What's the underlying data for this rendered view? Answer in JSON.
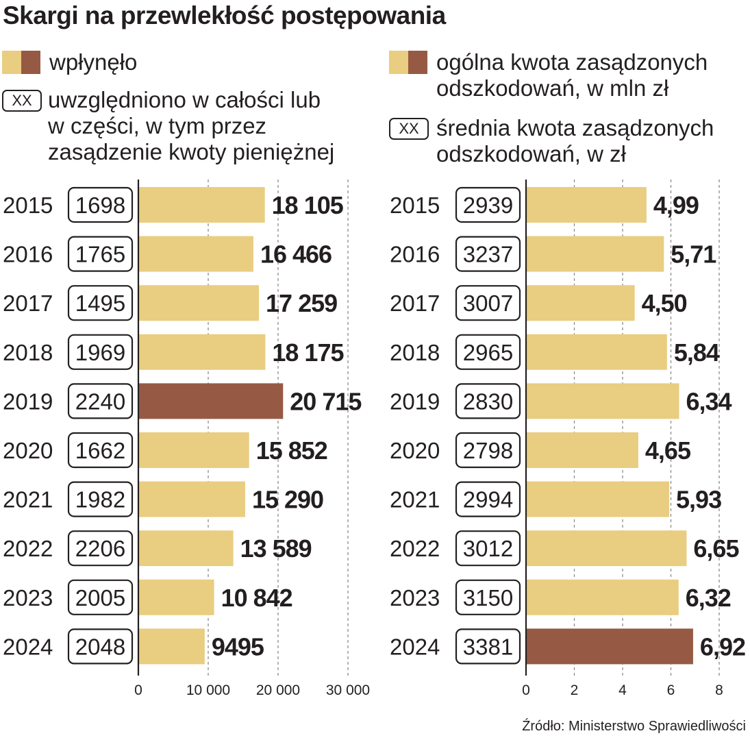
{
  "title": "Skargi na przewlekłość postępowania",
  "legend": {
    "left_bar": "wpłynęło",
    "left_box_sample": "XX",
    "left_box_lines": [
      "uwzględniono w całości lub",
      "w części, w tym przez",
      "zasądzenie kwoty pieniężnej"
    ],
    "right_bar_lines": [
      "ogólna kwota zasądzonych",
      "odszkodowań, w mln zł"
    ],
    "right_box_sample": "XX",
    "right_box_lines": [
      "średnia kwota zasądzonych",
      "odszkodowań, w zł"
    ]
  },
  "colors": {
    "bar": "#e9cd80",
    "highlight": "#965a44",
    "text": "#231f20",
    "grid": "#8a8a8a"
  },
  "source": "Źródło: Ministerstwo Sprawiedliwości",
  "chart_data": [
    {
      "type": "bar",
      "orientation": "horizontal",
      "title": "wpłynęło",
      "categories": [
        "2015",
        "2016",
        "2017",
        "2018",
        "2019",
        "2020",
        "2021",
        "2022",
        "2023",
        "2024"
      ],
      "values": [
        18105,
        16466,
        17259,
        18175,
        20715,
        15852,
        15290,
        13589,
        10842,
        9495
      ],
      "value_labels": [
        "18 105",
        "16 466",
        "17 259",
        "18 175",
        "20 715",
        "15 852",
        "15 290",
        "13 589",
        "10 842",
        "9495"
      ],
      "box_values": [
        "1698",
        "1765",
        "1495",
        "1969",
        "2240",
        "1662",
        "1982",
        "2206",
        "2005",
        "2048"
      ],
      "box_label": "uwzględniono w całości lub w części, w tym przez zasądzenie kwoty pieniężnej",
      "highlight_index": 4,
      "xlim": [
        0,
        30000
      ],
      "ticks": [
        0,
        10000,
        20000,
        30000
      ],
      "tick_labels": [
        "0",
        "10 000",
        "20 000",
        "30 000"
      ]
    },
    {
      "type": "bar",
      "orientation": "horizontal",
      "title": "ogólna kwota zasądzonych odszkodowań, w mln zł",
      "categories": [
        "2015",
        "2016",
        "2017",
        "2018",
        "2019",
        "2020",
        "2021",
        "2022",
        "2023",
        "2024"
      ],
      "values": [
        4.99,
        5.71,
        4.5,
        5.84,
        6.34,
        4.65,
        5.93,
        6.65,
        6.32,
        6.92
      ],
      "value_labels": [
        "4,99",
        "5,71",
        "4,50",
        "5,84",
        "6,34",
        "4,65",
        "5,93",
        "6,65",
        "6,32",
        "6,92"
      ],
      "box_values": [
        "2939",
        "3237",
        "3007",
        "2965",
        "2830",
        "2798",
        "2994",
        "3012",
        "3150",
        "3381"
      ],
      "box_label": "średnia kwota zasądzonych odszkodowań, w zł",
      "highlight_index": 9,
      "xlim": [
        0,
        8
      ],
      "ticks": [
        0,
        2,
        4,
        6,
        8
      ],
      "tick_labels": [
        "0",
        "2",
        "4",
        "6",
        "8"
      ]
    }
  ]
}
